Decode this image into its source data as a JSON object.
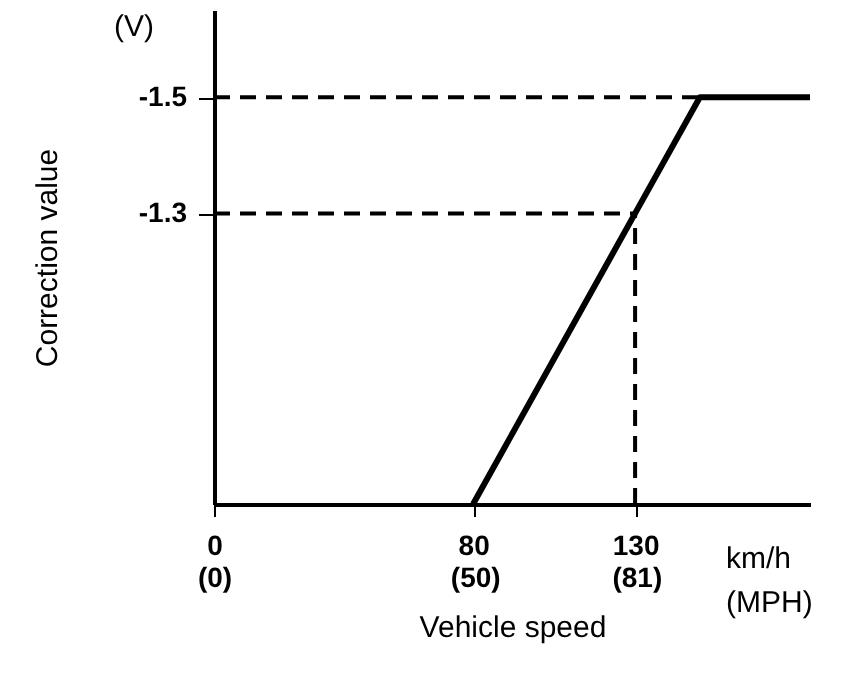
{
  "chart_data": {
    "type": "line",
    "xlabel": "Vehicle speed",
    "ylabel": "Correction value",
    "annotations": [
      "(V)",
      "km/h\n(MPH)"
    ],
    "xlim": [
      0,
      184
    ],
    "xticks": [
      0,
      80,
      130
    ],
    "x2lim": [
      0,
      114.3
    ],
    "x2ticks": [
      {
        "value": 0,
        "label": "(0)"
      },
      {
        "value": 50,
        "label": "(50)"
      },
      {
        "value": 81,
        "label": "(81)"
      }
    ],
    "ylim": [
      -0.8,
      -1.65
    ],
    "yticks": [
      -1.5,
      -1.3
    ],
    "grid": false,
    "marker": "none",
    "line_style": "solid",
    "ref_lines": [
      {
        "axis": "y",
        "value": -1.5,
        "line_style": "dashed",
        "color": "#000000"
      },
      {
        "axis": "y",
        "value": -1.3,
        "line_style": "dashed",
        "color": "#000000"
      },
      {
        "axis": "x",
        "value": 130,
        "line_style": "dashed",
        "color": "#000000"
      }
    ],
    "series": [
      {
        "color": "#000000",
        "x": [
          80,
          130,
          150,
          184
        ],
        "values": [
          -0.8,
          -1.3,
          -1.5,
          -1.5
        ]
      }
    ]
  }
}
